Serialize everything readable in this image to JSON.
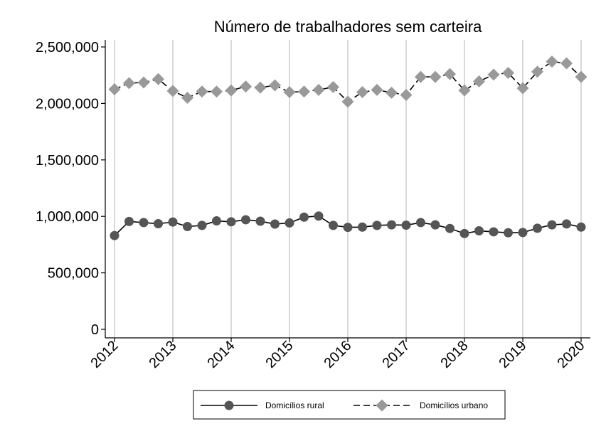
{
  "chart_data": {
    "type": "line",
    "title": "Número de trabalhadores sem carteira",
    "xlabel": "",
    "ylabel": "",
    "x_tick_labels": [
      "2012",
      "2013",
      "2014",
      "2015",
      "2016",
      "2017",
      "2018",
      "2019",
      "2020"
    ],
    "y_tick_labels": [
      "0",
      "500,000",
      "1,000,000",
      "1,500,000",
      "2,000,000",
      "2,500,000"
    ],
    "y_ticks": [
      0,
      500000,
      1000000,
      1500000,
      2000000,
      2500000
    ],
    "xlim": [
      2012,
      2020
    ],
    "ylim": [
      0,
      2500000
    ],
    "grid": "vertical at year ticks",
    "legend_position": "bottom",
    "x": [
      2012.0,
      2012.25,
      2012.5,
      2012.75,
      2013.0,
      2013.25,
      2013.5,
      2013.75,
      2014.0,
      2014.25,
      2014.5,
      2014.75,
      2015.0,
      2015.25,
      2015.5,
      2015.75,
      2016.0,
      2016.25,
      2016.5,
      2016.75,
      2017.0,
      2017.25,
      2017.5,
      2017.75,
      2018.0,
      2018.25,
      2018.5,
      2018.75,
      2019.0,
      2019.25,
      2019.5,
      2019.75,
      2020.0
    ],
    "series": [
      {
        "name": "Domicílios rural",
        "marker": "circle",
        "line": "solid",
        "color": "#555555",
        "values": [
          830000,
          955000,
          945000,
          935000,
          950000,
          910000,
          920000,
          960000,
          952000,
          970000,
          957000,
          932000,
          942000,
          993000,
          1003000,
          920000,
          903000,
          905000,
          920000,
          925000,
          922000,
          945000,
          925000,
          893000,
          848000,
          872000,
          863000,
          855000,
          857000,
          895000,
          925000,
          933000,
          905000
        ]
      },
      {
        "name": "Domicílios urbano",
        "marker": "diamond",
        "line": "dashed",
        "color": "#999999",
        "values": [
          2125000,
          2180000,
          2185000,
          2215000,
          2110000,
          2050000,
          2105000,
          2105000,
          2115000,
          2150000,
          2140000,
          2160000,
          2100000,
          2105000,
          2120000,
          2145000,
          2015000,
          2100000,
          2120000,
          2095000,
          2075000,
          2235000,
          2235000,
          2260000,
          2115000,
          2195000,
          2255000,
          2270000,
          2135000,
          2280000,
          2370000,
          2355000,
          2235000
        ]
      }
    ]
  }
}
